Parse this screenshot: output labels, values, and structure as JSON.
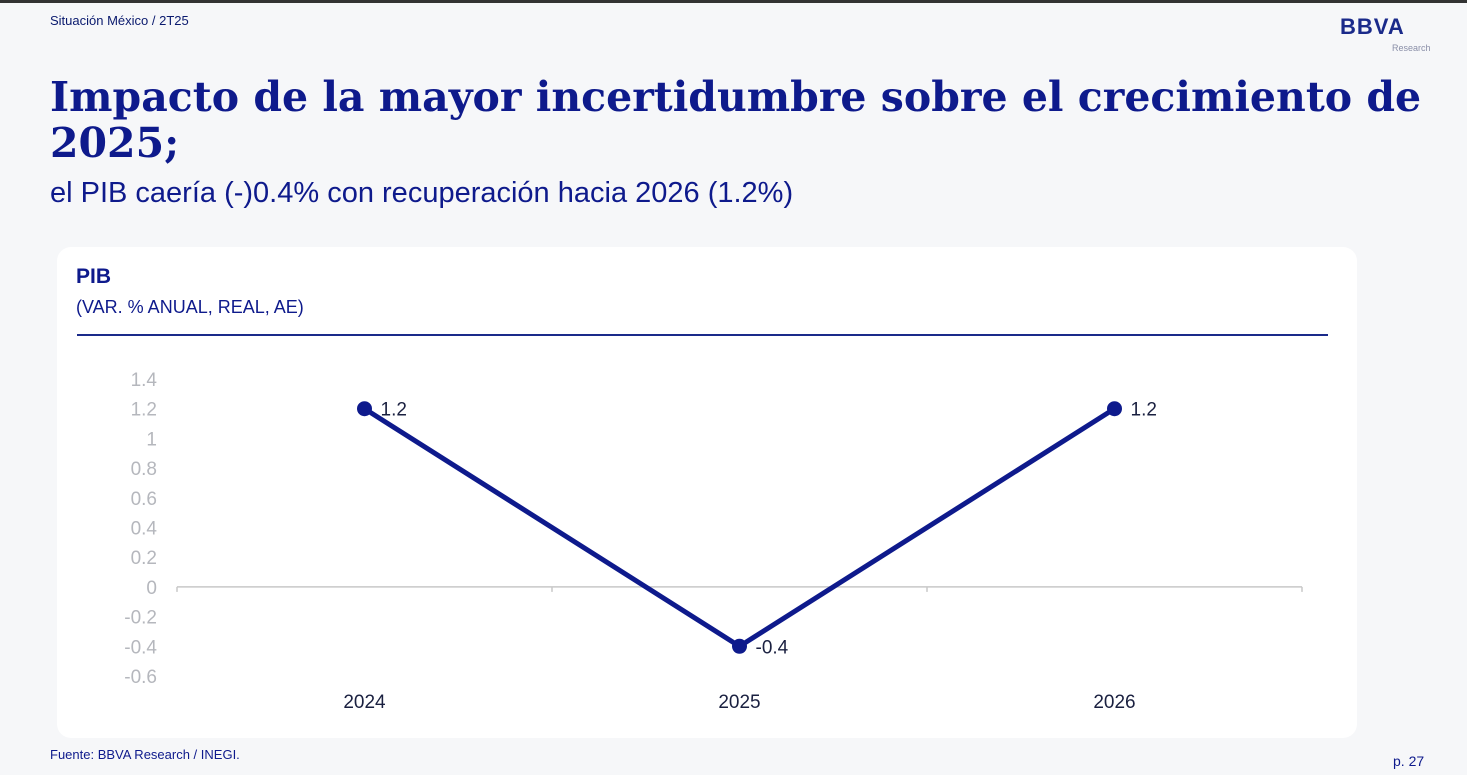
{
  "header": {
    "kicker": "Situación México / 2T25",
    "logo_text": "BBVA",
    "logo_sub": "Research"
  },
  "title": "Impacto de la mayor incertidumbre sobre el crecimiento de 2025;",
  "subtitle": "el PIB caería (-)0.4% con recuperación hacia 2026 (1.2%)",
  "chart_data": {
    "type": "line",
    "title": "PIB",
    "subtitle": "(VAR. % ANUAL, REAL, AE)",
    "categories": [
      "2024",
      "2025",
      "2026"
    ],
    "series": [
      {
        "values": [
          1.2,
          -0.4,
          1.2
        ],
        "color": "#0e1a8c"
      }
    ],
    "data_labels": [
      "1.2",
      "-0.4",
      "1.2"
    ],
    "yticks": [
      "1.4",
      "1.2",
      "1",
      "0.8",
      "0.6",
      "0.4",
      "0.2",
      "0",
      "-0.2",
      "-0.4",
      "-0.6"
    ],
    "ylim": [
      -0.6,
      1.4
    ],
    "grid": false
  },
  "footer": {
    "source": "Fuente: BBVA Research / INEGI.",
    "page": "p. 27"
  }
}
